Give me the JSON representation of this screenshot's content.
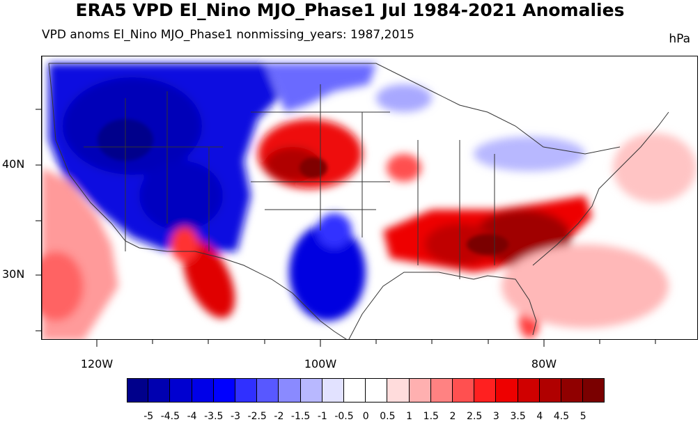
{
  "title": "ERA5 VPD El_Nino MJO_Phase1 Jul 1984-2021 Anomalies",
  "subtitle": "VPD anoms El_Nino MJO_Phase1 nonmissing_years: 1987,2015",
  "units": "hPa",
  "lat_labels": [
    "40N",
    "30N"
  ],
  "lon_labels": [
    "120W",
    "100W",
    "80W"
  ],
  "colorbar": {
    "labels": [
      "-5",
      "-4.5",
      "-4",
      "-3.5",
      "-3",
      "-2.5",
      "-2",
      "-1.5",
      "-1",
      "-0.5",
      "0",
      "0.5",
      "1",
      "1.5",
      "2",
      "2.5",
      "3",
      "3.5",
      "4",
      "4.5",
      "5"
    ],
    "colors": [
      "#00008b",
      "#0000b0",
      "#0000d0",
      "#0000e8",
      "#0000ff",
      "#3030ff",
      "#5858ff",
      "#8a8aff",
      "#b8b8ff",
      "#e2e2ff",
      "#ffffff",
      "#ffffff",
      "#ffdcdc",
      "#ffb0b0",
      "#ff8282",
      "#ff5050",
      "#ff2020",
      "#ee0000",
      "#d00000",
      "#b00000",
      "#900000",
      "#7a0000"
    ]
  }
}
